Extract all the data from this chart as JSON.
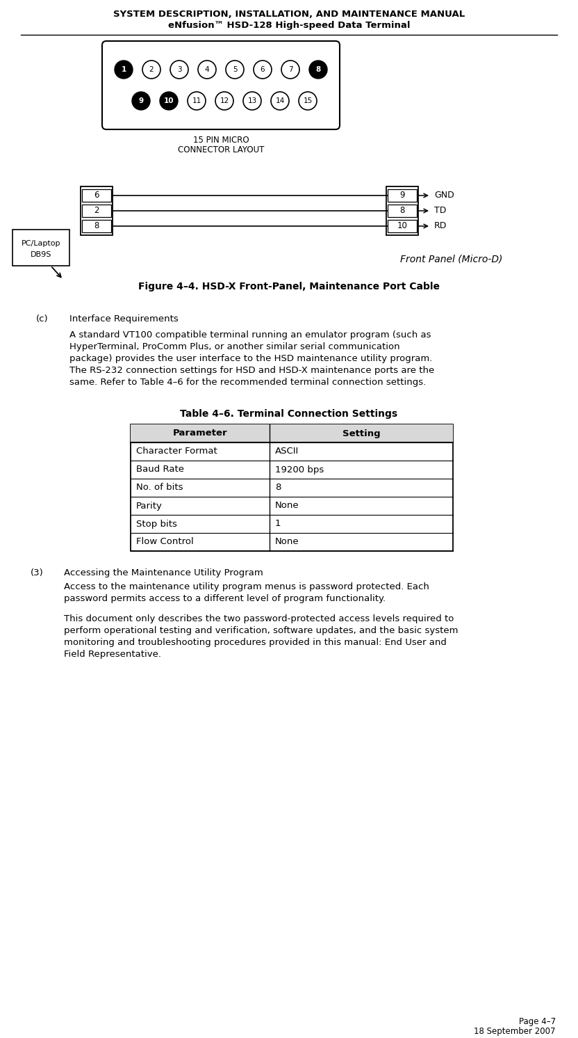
{
  "header_line1": "SYSTEM DESCRIPTION, INSTALLATION, AND MAINTENANCE MANUAL",
  "header_line2": "eNfusion™ HSD-128 High-speed Data Terminal",
  "figure_caption": "Figure 4–4. HSD-X Front-Panel, Maintenance Port Cable",
  "section_c_label": "(c)",
  "section_c_heading": "Interface Requirements",
  "section_c_body_lines": [
    "A standard VT100 compatible terminal running an emulator program (such as",
    "HyperTerminal, ProComm Plus, or another similar serial communication",
    "package) provides the user interface to the HSD maintenance utility program.",
    "The RS-232 connection settings for HSD and HSD-X maintenance ports are the",
    "same. Refer to Table 4–6 for the recommended terminal connection settings."
  ],
  "table_title": "Table 4–6. Terminal Connection Settings",
  "table_headers": [
    "Parameter",
    "Setting"
  ],
  "table_rows": [
    [
      "Character Format",
      "ASCII"
    ],
    [
      "Baud Rate",
      "19200 bps"
    ],
    [
      "No. of bits",
      "8"
    ],
    [
      "Parity",
      "None"
    ],
    [
      "Stop bits",
      "1"
    ],
    [
      "Flow Control",
      "None"
    ]
  ],
  "section3_label": "(3)",
  "section3_heading": "Accessing the Maintenance Utility Program",
  "section3_para1_lines": [
    "Access to the maintenance utility program menus is password protected. Each",
    "password permits access to a different level of program functionality."
  ],
  "section3_para2_lines": [
    "This document only describes the two password-protected access levels required to",
    "perform operational testing and verification, software updates, and the basic system",
    "monitoring and troubleshooting procedures provided in this manual: End User and",
    "Field Representative."
  ],
  "page_label": "Page 4–7",
  "date_label": "18 September 2007",
  "bg_color": "#ffffff",
  "text_color": "#000000",
  "header_fontsize": 9.5,
  "body_fontsize": 9.5,
  "table_fontsize": 9.5,
  "small_fontsize": 8.5,
  "lh": 17
}
